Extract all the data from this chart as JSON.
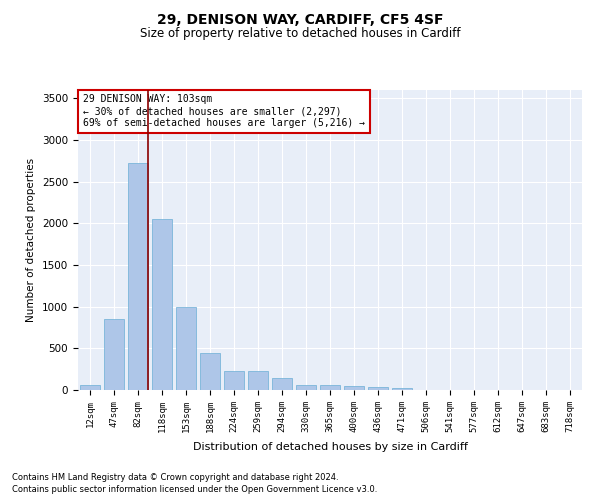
{
  "title1": "29, DENISON WAY, CARDIFF, CF5 4SF",
  "title2": "Size of property relative to detached houses in Cardiff",
  "xlabel": "Distribution of detached houses by size in Cardiff",
  "ylabel": "Number of detached properties",
  "footnote1": "Contains HM Land Registry data © Crown copyright and database right 2024.",
  "footnote2": "Contains public sector information licensed under the Open Government Licence v3.0.",
  "annotation_line1": "29 DENISON WAY: 103sqm",
  "annotation_line2": "← 30% of detached houses are smaller (2,297)",
  "annotation_line3": "69% of semi-detached houses are larger (5,216) →",
  "bar_labels": [
    "12sqm",
    "47sqm",
    "82sqm",
    "118sqm",
    "153sqm",
    "188sqm",
    "224sqm",
    "259sqm",
    "294sqm",
    "330sqm",
    "365sqm",
    "400sqm",
    "436sqm",
    "471sqm",
    "506sqm",
    "541sqm",
    "577sqm",
    "612sqm",
    "647sqm",
    "683sqm",
    "718sqm"
  ],
  "bar_values": [
    60,
    850,
    2725,
    2050,
    1000,
    450,
    230,
    230,
    140,
    65,
    55,
    50,
    35,
    20,
    5,
    5,
    5,
    5,
    0,
    0,
    0
  ],
  "bar_color": "#aec6e8",
  "bar_edge_color": "#6baed6",
  "vline_color": "#8b0000",
  "ylim": [
    0,
    3600
  ],
  "yticks": [
    0,
    500,
    1000,
    1500,
    2000,
    2500,
    3000,
    3500
  ],
  "bg_color": "#e8eef8",
  "grid_color": "#ffffff",
  "annotation_box_color": "#cc0000"
}
